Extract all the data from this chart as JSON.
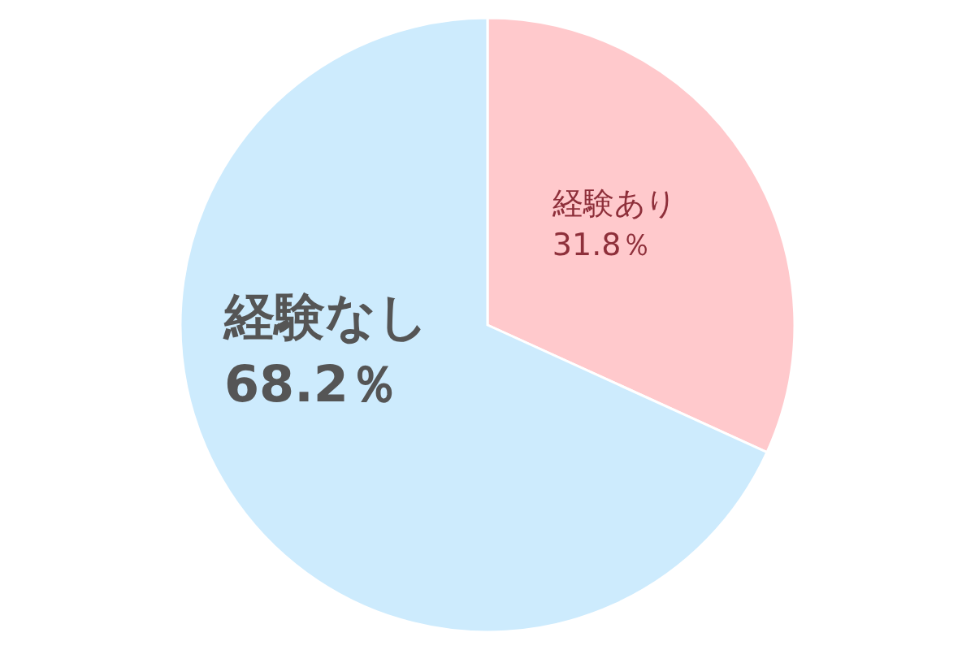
{
  "chart_data": {
    "type": "pie",
    "categories": [
      "経験あり",
      "経験なし"
    ],
    "values": [
      31.8,
      68.2
    ],
    "colors": [
      "#ffc9cc",
      "#cdebfd"
    ],
    "value_labels": [
      "31.8％",
      "68.2％"
    ]
  }
}
